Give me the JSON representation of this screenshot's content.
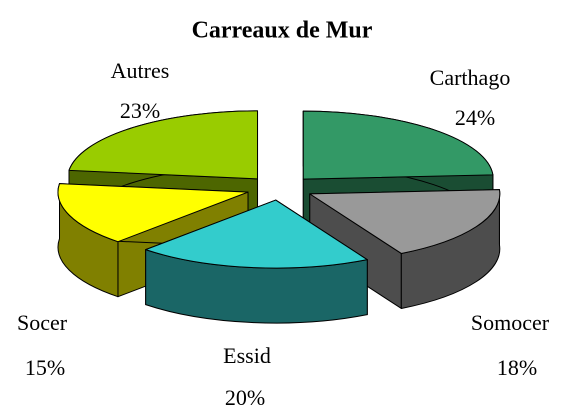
{
  "chart_data": {
    "type": "pie",
    "title": "Carreaux de Mur",
    "categories": [
      "Carthago",
      "Somocer",
      "Essid",
      "Socer",
      "Autres"
    ],
    "values": [
      24,
      18,
      20,
      15,
      23
    ],
    "value_labels": [
      "24%",
      "18%",
      "20%",
      "15%",
      "23%"
    ],
    "colors": [
      "#339966",
      "#999999",
      "#33cccc",
      "#ffff00",
      "#99cc00"
    ]
  }
}
